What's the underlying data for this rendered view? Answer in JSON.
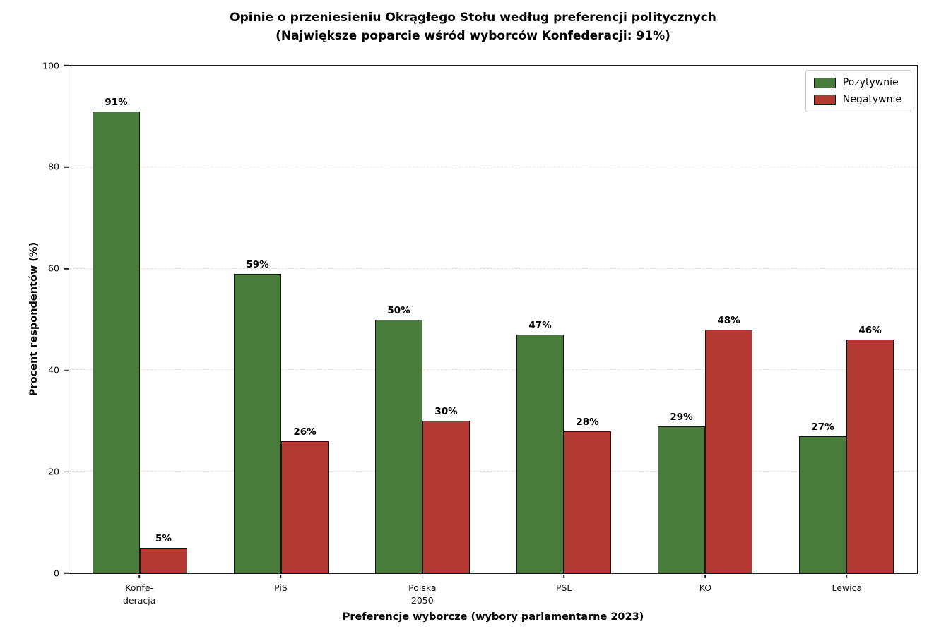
{
  "chart_data": {
    "type": "bar",
    "title": "Opinie o przeniesieniu Okrągłego Stołu według preferencji politycznych",
    "subtitle": "(Największe poparcie wśród wyborców Konfederacji: 91%)",
    "categories": [
      "Konfe-\nderacja",
      "PiS",
      "Polska\n2050",
      "PSL",
      "KO",
      "Lewica"
    ],
    "series": [
      {
        "name": "Pozytywnie",
        "color": "#497c3b",
        "values": [
          91,
          59,
          50,
          47,
          29,
          27
        ]
      },
      {
        "name": "Negatywnie",
        "color": "#b23a31",
        "values": [
          5,
          26,
          30,
          28,
          48,
          46
        ]
      }
    ],
    "bar_value_suffix": "%",
    "xlabel": "Preferencje wyborcze (wybory parlamentarne 2023)",
    "ylabel": "Procent respondentów (%)",
    "ylim": [
      0,
      100
    ],
    "yticks": [
      0,
      20,
      40,
      60,
      80,
      100
    ],
    "grid": "horizontal dashed",
    "legend_position": "upper right",
    "colors": {
      "positive": "#497c3b",
      "negative": "#b23a31",
      "bar_edge": "#151515",
      "gridline": "#dedede",
      "spine": "#1a1a1a"
    }
  }
}
